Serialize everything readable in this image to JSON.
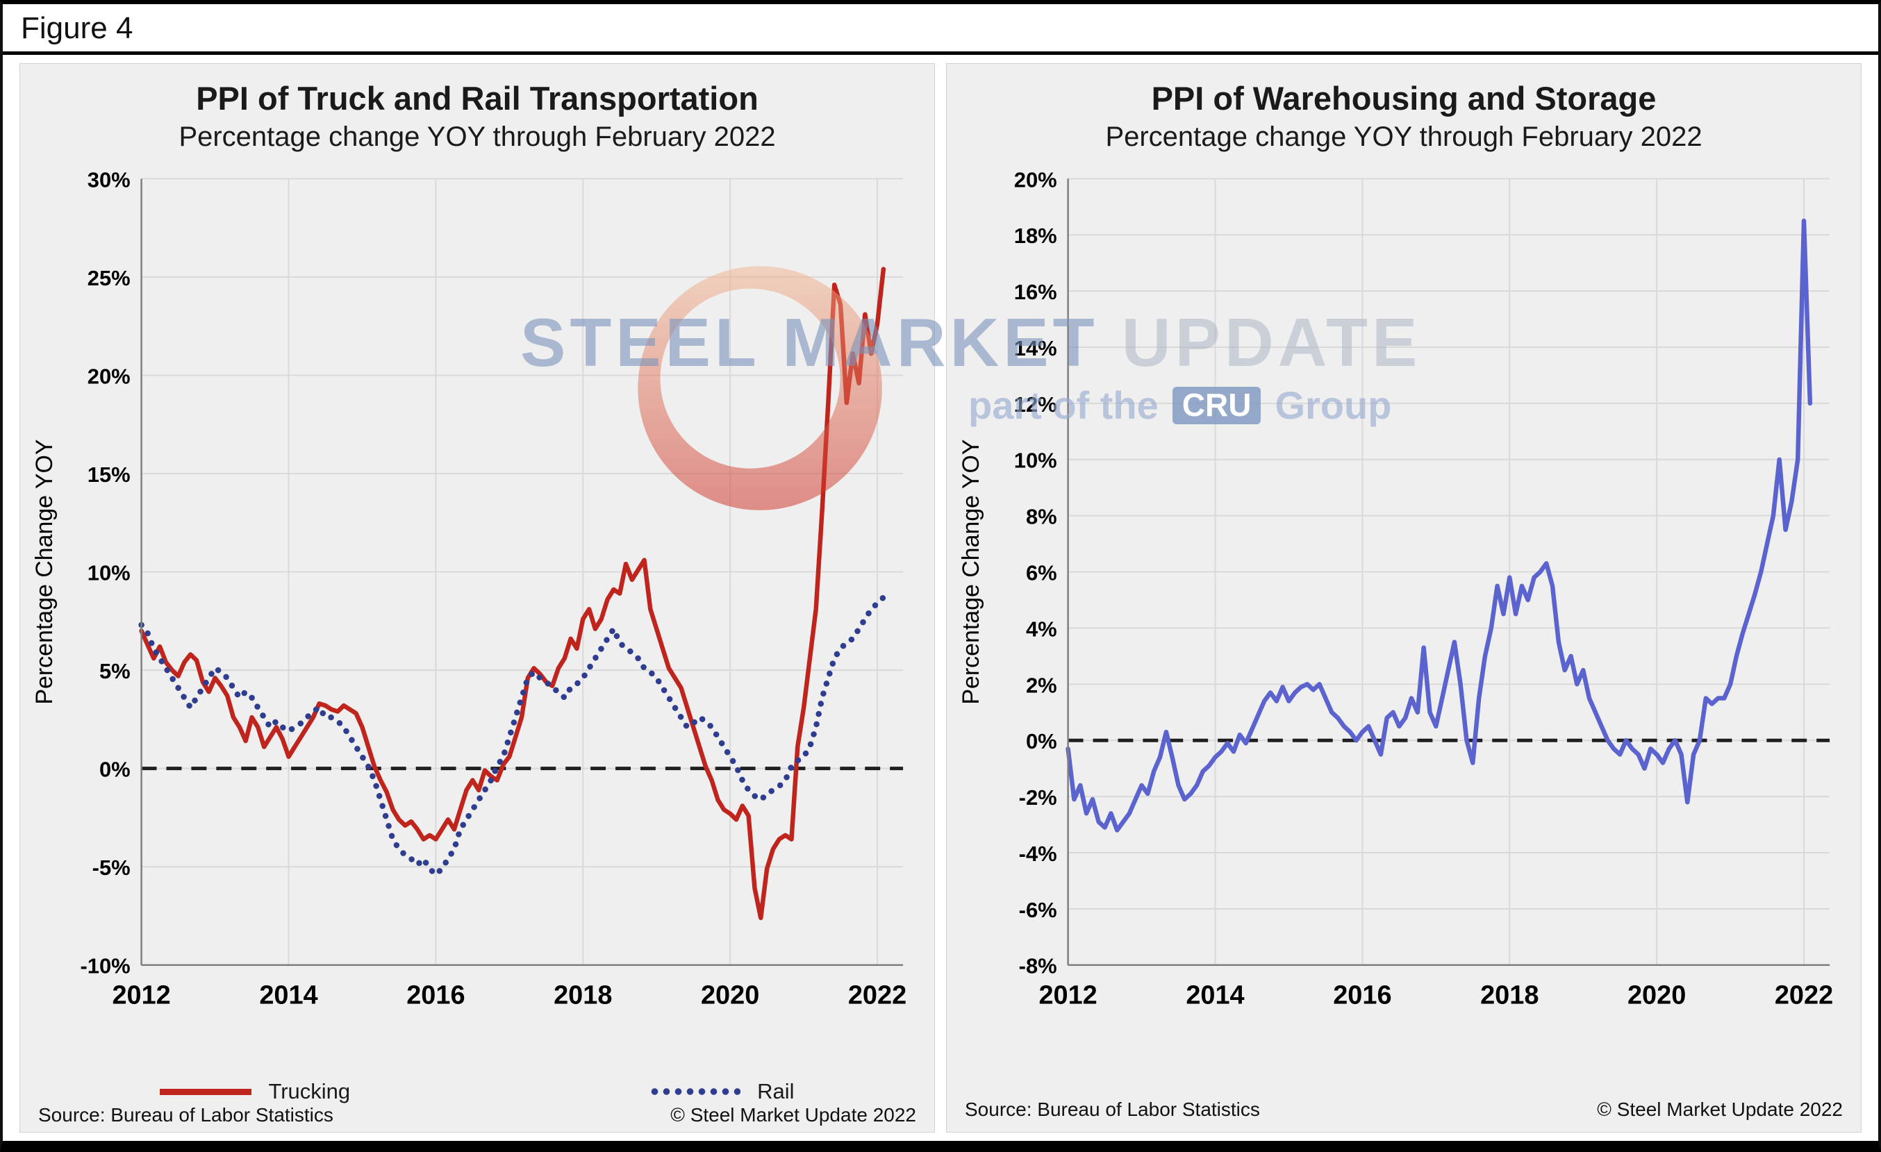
{
  "figure_label": "Figure 4",
  "watermark": {
    "steel": "STEEL",
    "market": "MARKET",
    "update": "UPDATE",
    "part_of_the": "part of the",
    "cru": "CRU",
    "group": "Group"
  },
  "left_chart": {
    "title": "PPI of Truck and Rail Transportation",
    "subtitle": "Percentage change YOY through February 2022",
    "y_axis_label": "Percentage Change YOY",
    "source": "Source: Bureau of Labor Statistics",
    "copyright": "© Steel Market Update 2022",
    "legend": [
      {
        "label": "Trucking",
        "color": "#c0251d",
        "style": "solid"
      },
      {
        "label": "Rail",
        "color": "#2e3d8f",
        "style": "dotted"
      }
    ]
  },
  "right_chart": {
    "title": "PPI of Warehousing and Storage",
    "subtitle": "Percentage change YOY through February 2022",
    "y_axis_label": "Percentage Change YOY",
    "source": "Source: Bureau of Labor Statistics",
    "copyright": "© Steel Market Update 2022"
  },
  "chart_data": [
    {
      "type": "line",
      "title": "PPI of Truck and Rail Transportation",
      "subtitle": "Percentage change YOY through February 2022",
      "ylabel": "Percentage Change YOY",
      "ylim": [
        -10,
        30
      ],
      "ytick_step": 5,
      "xlim": [
        2012,
        2022.35
      ],
      "xticks": [
        2012,
        2014,
        2016,
        2018,
        2020,
        2022
      ],
      "x_start": 2012.0,
      "x_frequency": "monthly",
      "x_end_label": "February 2022",
      "grid": true,
      "zero_line": true,
      "series": [
        {
          "name": "Trucking",
          "color": "#c0251d",
          "style": "solid",
          "values": [
            7.0,
            6.3,
            5.6,
            6.2,
            5.4,
            5.0,
            4.7,
            5.4,
            5.8,
            5.5,
            4.4,
            3.9,
            4.6,
            4.2,
            3.7,
            2.6,
            2.1,
            1.4,
            2.6,
            2.1,
            1.1,
            1.6,
            2.1,
            1.5,
            0.6,
            1.1,
            1.6,
            2.1,
            2.6,
            3.3,
            3.2,
            3.0,
            2.9,
            3.2,
            3.0,
            2.8,
            2.1,
            1.1,
            0.1,
            -0.6,
            -1.2,
            -2.1,
            -2.6,
            -2.9,
            -2.7,
            -3.1,
            -3.6,
            -3.4,
            -3.6,
            -3.1,
            -2.6,
            -3.1,
            -2.1,
            -1.1,
            -0.6,
            -1.1,
            -0.1,
            -0.4,
            -0.6,
            0.2,
            0.6,
            1.6,
            2.6,
            4.6,
            5.1,
            4.8,
            4.4,
            4.2,
            5.1,
            5.6,
            6.6,
            6.1,
            7.6,
            8.1,
            7.1,
            7.6,
            8.6,
            9.1,
            8.9,
            10.4,
            9.6,
            10.1,
            10.6,
            8.1,
            7.1,
            6.1,
            5.1,
            4.6,
            4.1,
            3.1,
            2.1,
            1.1,
            0.1,
            -0.6,
            -1.6,
            -2.1,
            -2.3,
            -2.6,
            -1.9,
            -2.4,
            -6.1,
            -7.6,
            -5.1,
            -4.1,
            -3.6,
            -3.4,
            -3.6,
            1.1,
            3.1,
            5.6,
            8.1,
            13.1,
            18.6,
            24.6,
            23.6,
            18.6,
            21.1,
            19.6,
            23.1,
            21.1,
            22.6,
            25.4
          ]
        },
        {
          "name": "Rail",
          "color": "#2e3d8f",
          "style": "dotted",
          "values": [
            7.3,
            6.9,
            6.1,
            5.6,
            5.1,
            4.6,
            4.1,
            3.6,
            3.1,
            3.6,
            4.1,
            4.6,
            5.1,
            4.9,
            4.6,
            4.1,
            3.6,
            3.9,
            3.6,
            3.1,
            2.6,
            2.1,
            2.4,
            2.1,
            1.9,
            2.1,
            2.3,
            2.6,
            2.9,
            3.1,
            2.6,
            2.6,
            2.4,
            2.1,
            1.6,
            1.1,
            0.6,
            0.1,
            -0.6,
            -1.6,
            -2.6,
            -3.6,
            -4.1,
            -4.4,
            -4.6,
            -4.9,
            -4.6,
            -5.1,
            -5.4,
            -5.1,
            -4.6,
            -4.1,
            -3.1,
            -2.6,
            -2.1,
            -1.6,
            -1.1,
            -0.6,
            0.1,
            0.6,
            1.6,
            2.6,
            3.6,
            4.6,
            4.9,
            4.6,
            4.4,
            4.1,
            3.9,
            3.6,
            4.1,
            4.3,
            4.6,
            5.1,
            5.6,
            6.1,
            6.6,
            7.1,
            6.4,
            6.1,
            5.9,
            5.6,
            5.1,
            4.9,
            4.6,
            4.1,
            3.6,
            3.1,
            2.6,
            2.1,
            2.3,
            2.6,
            2.4,
            2.1,
            1.6,
            1.1,
            0.6,
            0.1,
            -0.6,
            -1.1,
            -1.4,
            -1.6,
            -1.3,
            -1.1,
            -0.9,
            -0.6,
            0.1,
            0.4,
            0.6,
            1.1,
            2.1,
            3.6,
            4.6,
            5.6,
            6.1,
            6.4,
            6.6,
            7.1,
            7.6,
            8.1,
            8.4,
            8.7
          ]
        }
      ]
    },
    {
      "type": "line",
      "title": "PPI of Warehousing and Storage",
      "subtitle": "Percentage change YOY through February 2022",
      "ylabel": "Percentage Change YOY",
      "ylim": [
        -8,
        20
      ],
      "ytick_step": 2,
      "xlim": [
        2012,
        2022.35
      ],
      "xticks": [
        2012,
        2014,
        2016,
        2018,
        2020,
        2022
      ],
      "x_start": 2012.0,
      "x_frequency": "monthly",
      "x_end_label": "February 2022",
      "grid": true,
      "zero_line": true,
      "series": [
        {
          "name": "Warehousing",
          "color": "#5b63cf",
          "style": "solid",
          "values": [
            -0.3,
            -2.1,
            -1.6,
            -2.6,
            -2.1,
            -2.9,
            -3.1,
            -2.6,
            -3.2,
            -2.9,
            -2.6,
            -2.1,
            -1.6,
            -1.9,
            -1.1,
            -0.6,
            0.3,
            -0.6,
            -1.6,
            -2.1,
            -1.9,
            -1.6,
            -1.1,
            -0.9,
            -0.6,
            -0.4,
            -0.1,
            -0.4,
            0.2,
            -0.1,
            0.4,
            0.9,
            1.4,
            1.7,
            1.4,
            1.9,
            1.4,
            1.7,
            1.9,
            2.0,
            1.8,
            2.0,
            1.5,
            1.0,
            0.8,
            0.5,
            0.3,
            0.0,
            0.3,
            0.5,
            0.0,
            -0.5,
            0.8,
            1.0,
            0.5,
            0.8,
            1.5,
            1.0,
            3.3,
            1.0,
            0.5,
            1.5,
            2.5,
            3.5,
            2.0,
            0.0,
            -0.8,
            1.5,
            3.0,
            4.0,
            5.5,
            4.5,
            5.8,
            4.5,
            5.5,
            5.0,
            5.8,
            6.0,
            6.3,
            5.5,
            3.5,
            2.5,
            3.0,
            2.0,
            2.5,
            1.5,
            1.0,
            0.5,
            0.0,
            -0.3,
            -0.5,
            0.0,
            -0.3,
            -0.5,
            -1.0,
            -0.3,
            -0.5,
            -0.8,
            -0.3,
            0.0,
            -0.5,
            -2.2,
            -0.5,
            0.0,
            1.5,
            1.3,
            1.5,
            1.5,
            2.0,
            3.0,
            3.8,
            4.5,
            5.2,
            6.0,
            7.0,
            8.0,
            10.0,
            7.5,
            8.5,
            10.0,
            18.5,
            12.0
          ]
        }
      ]
    }
  ]
}
